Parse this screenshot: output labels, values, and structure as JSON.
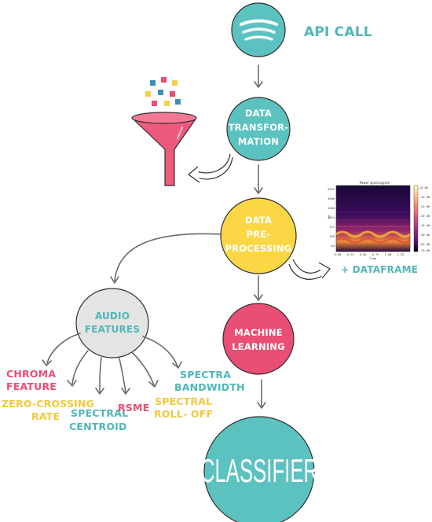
{
  "colors": {
    "teal": "#5cc2c0",
    "yellow": "#fbd746",
    "pink": "#e94e74",
    "grey": "#e4e4e4",
    "dark_teal": "#1f5a5c",
    "spec_yellow": "#f1d24a",
    "spec_pink": "#e94e74",
    "spec_blue": "#3e8ebd"
  },
  "nodes": {
    "api_call": {
      "label": "API CALL",
      "icon": "spotify-icon"
    },
    "transform": {
      "lines": [
        "DATA",
        "TRANSFOR-",
        "MATION"
      ],
      "icon": "funnel-icon"
    },
    "preprocess": {
      "lines": [
        "DATA",
        "PRE-",
        "PROCESSING"
      ]
    },
    "ml": {
      "lines": [
        "MACHINE",
        "LEARNING"
      ]
    },
    "classifier": {
      "label": "CLASSIFIER"
    },
    "audio_features": {
      "lines": [
        "AUDIO",
        "FEATURES"
      ]
    },
    "dataframe": {
      "label": "+ DATAFRAME",
      "image": "mel-spectrogram-image"
    }
  },
  "features": [
    {
      "lines": [
        "CHROMA",
        "FEATURE"
      ],
      "color": "#e94e74"
    },
    {
      "lines": [
        "ZERO-CROSSING",
        "RATE"
      ],
      "color": "#f1c93a"
    },
    {
      "lines": [
        "SPECTRAL",
        "CENTROID"
      ],
      "color": "#4fb6b8"
    },
    {
      "lines": [
        "RSME"
      ],
      "color": "#e94e74"
    },
    {
      "lines": [
        "SPECTRAL",
        "ROLL- OFF"
      ],
      "color": "#f1c93a"
    },
    {
      "lines": [
        "SPECTRA",
        "BANDWIDTH"
      ],
      "color": "#4fb6b8"
    }
  ]
}
